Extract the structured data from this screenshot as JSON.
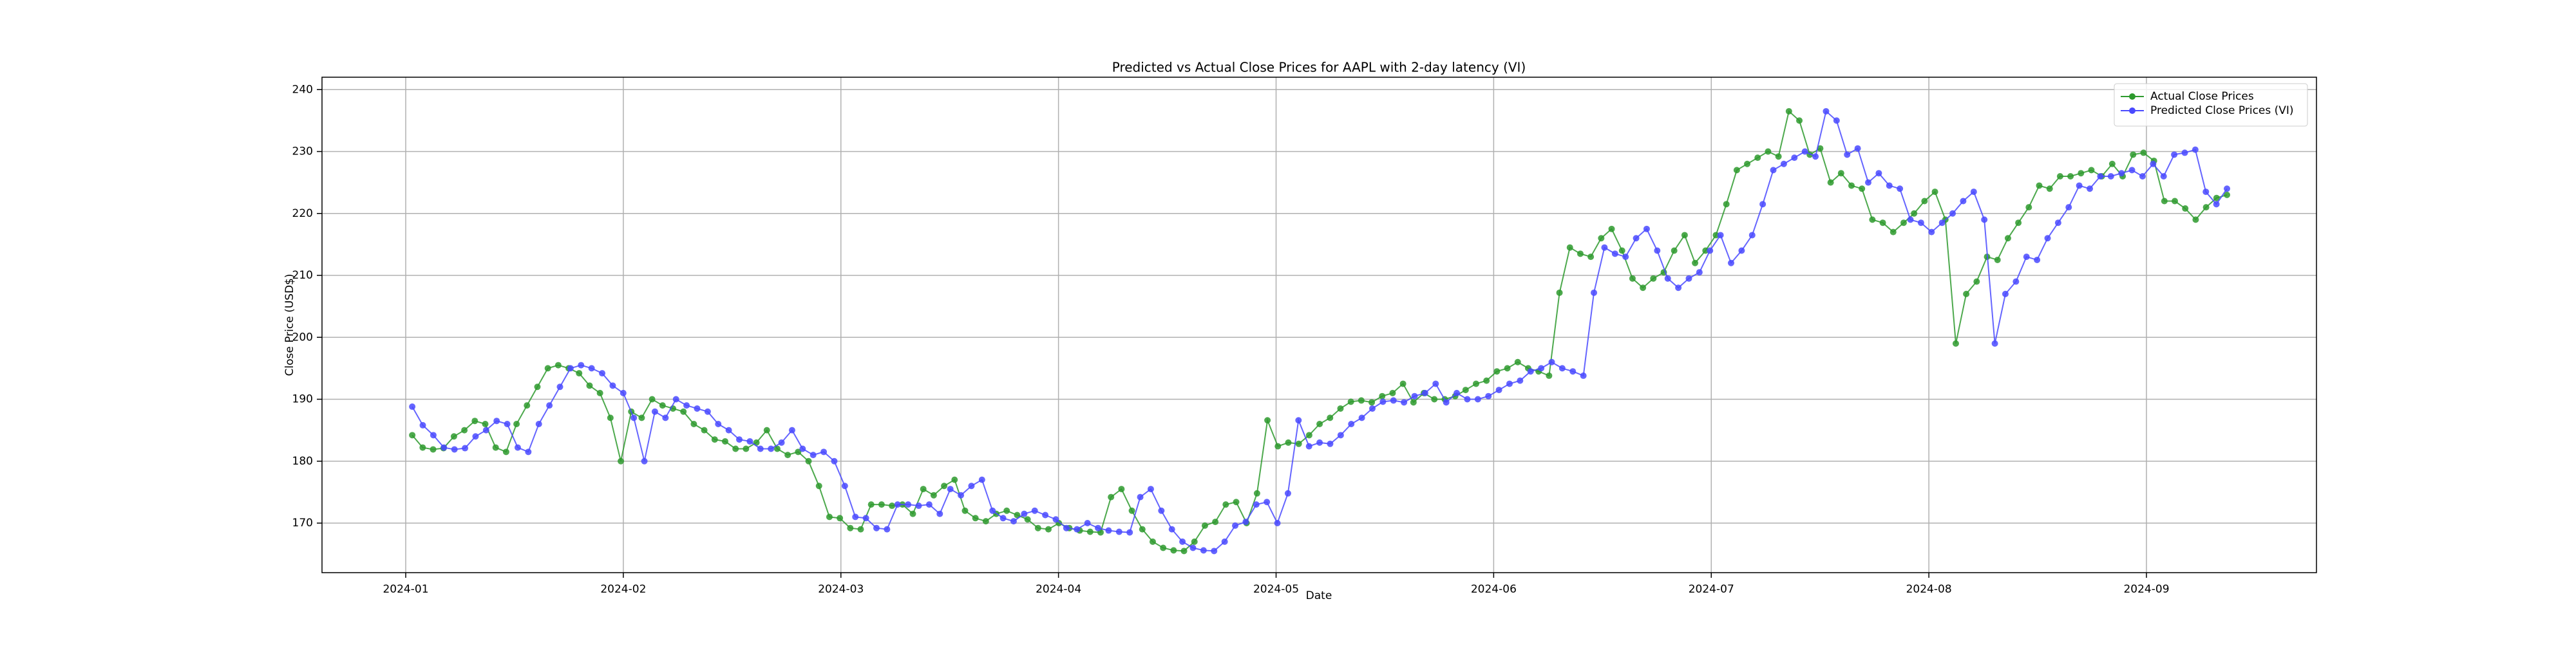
{
  "chart_data": {
    "type": "line",
    "title": "Predicted vs Actual Close Prices for AAPL with 2-day latency (VI)",
    "x_label": "Date",
    "y_label": "Close Price (USD$)",
    "xticks": [
      "2024-01",
      "2024-02",
      "2024-03",
      "2024-04",
      "2024-05",
      "2024-06",
      "2024-07",
      "2024-08",
      "2024-09"
    ],
    "ylim": [
      162,
      242
    ],
    "yticks": [
      170,
      180,
      190,
      200,
      210,
      220,
      230,
      240
    ],
    "grid": true,
    "legend": "upper right",
    "series": [
      {
        "name": "Actual Close Prices",
        "color": "#2e9a2e",
        "values": [
          184.2,
          182.2,
          181.9,
          182.1,
          184.0,
          185.0,
          186.5,
          186.0,
          182.2,
          181.5,
          186.0,
          189.0,
          192.0,
          195.0,
          195.5,
          195.0,
          194.2,
          192.2,
          191.0,
          187.0,
          180.0,
          188.0,
          187.0,
          190.0,
          189.0,
          188.5,
          188.0,
          186.0,
          185.0,
          183.5,
          183.2,
          182.0,
          182.0,
          183.0,
          185.0,
          182.0,
          181.0,
          181.5,
          180.0,
          176.0,
          171.0,
          170.8,
          169.2,
          169.0,
          173.0,
          173.0,
          172.8,
          173.0,
          171.5,
          175.5,
          174.5,
          176.0,
          177.0,
          172.0,
          170.8,
          170.3,
          171.5,
          172.0,
          171.3,
          170.6,
          169.2,
          169.0,
          170.0,
          169.2,
          168.8,
          168.6,
          168.5,
          174.2,
          175.5,
          172.0,
          169.0,
          167.0,
          166.0,
          165.6,
          165.5,
          167.0,
          169.6,
          170.2,
          173.0,
          173.4,
          170.0,
          174.8,
          186.6,
          182.4,
          183.0,
          182.8,
          184.2,
          186.0,
          187.0,
          188.5,
          189.6,
          189.8,
          189.5,
          190.5,
          191.0,
          192.5,
          189.5,
          191.0,
          190.0,
          190.0,
          190.5,
          191.5,
          192.5,
          193.0,
          194.5,
          195.0,
          196.0,
          195.0,
          194.5,
          193.8,
          207.2,
          214.5,
          213.5,
          213.0,
          216.0,
          217.5,
          214.0,
          209.5,
          208.0,
          209.5,
          210.5,
          214.0,
          216.5,
          212.0,
          214.0,
          216.5,
          221.5,
          227.0,
          228.0,
          229.0,
          230.0,
          229.2,
          236.5,
          235.0,
          229.5,
          230.5,
          225.0,
          226.5,
          224.5,
          224.0,
          219.0,
          218.5,
          217.0,
          218.5,
          220.0,
          222.0,
          223.5,
          219.0,
          199.0,
          207.0,
          209.0,
          213.0,
          212.5,
          216.0,
          218.5,
          221.0,
          224.5,
          224.0,
          226.0,
          226.0,
          226.5,
          227.0,
          226.0,
          228.0,
          226.0,
          229.5,
          229.8,
          228.5,
          222.0,
          222.0,
          220.8,
          219.0,
          221.0,
          222.5,
          223.0
        ]
      },
      {
        "name": "Predicted Close Prices (VI)",
        "color": "#4a4aff",
        "values": [
          188.8,
          185.8,
          184.2,
          182.2,
          181.9,
          182.1,
          184.0,
          185.0,
          186.5,
          186.0,
          182.2,
          181.5,
          186.0,
          189.0,
          192.0,
          195.0,
          195.5,
          195.0,
          194.2,
          192.2,
          191.0,
          187.0,
          180.0,
          188.0,
          187.0,
          190.0,
          189.0,
          188.5,
          188.0,
          186.0,
          185.0,
          183.5,
          183.2,
          182.0,
          182.0,
          183.0,
          185.0,
          182.0,
          181.0,
          181.5,
          180.0,
          176.0,
          171.0,
          170.8,
          169.2,
          169.0,
          173.0,
          173.0,
          172.8,
          173.0,
          171.5,
          175.5,
          174.5,
          176.0,
          177.0,
          172.0,
          170.8,
          170.3,
          171.5,
          172.0,
          171.3,
          170.6,
          169.2,
          169.0,
          170.0,
          169.2,
          168.8,
          168.6,
          168.5,
          174.2,
          175.5,
          172.0,
          169.0,
          167.0,
          166.0,
          165.6,
          165.5,
          167.0,
          169.6,
          170.2,
          173.0,
          173.4,
          170.0,
          174.8,
          186.6,
          182.4,
          183.0,
          182.8,
          184.2,
          186.0,
          187.0,
          188.5,
          189.6,
          189.8,
          189.5,
          190.5,
          191.0,
          192.5,
          189.5,
          191.0,
          190.0,
          190.0,
          190.5,
          191.5,
          192.5,
          193.0,
          194.5,
          195.0,
          196.0,
          195.0,
          194.5,
          193.8,
          207.2,
          214.5,
          213.5,
          213.0,
          216.0,
          217.5,
          214.0,
          209.5,
          208.0,
          209.5,
          210.5,
          214.0,
          216.5,
          212.0,
          214.0,
          216.5,
          221.5,
          227.0,
          228.0,
          229.0,
          230.0,
          229.2,
          236.5,
          235.0,
          229.5,
          230.5,
          225.0,
          226.5,
          224.5,
          224.0,
          219.0,
          218.5,
          217.0,
          218.5,
          220.0,
          222.0,
          223.5,
          219.0,
          199.0,
          207.0,
          209.0,
          213.0,
          212.5,
          216.0,
          218.5,
          221.0,
          224.5,
          224.0,
          226.0,
          226.0,
          226.5,
          227.0,
          226.0,
          228.0,
          226.0,
          229.5,
          229.8,
          230.3,
          223.5,
          221.5,
          224.0
        ]
      }
    ]
  }
}
